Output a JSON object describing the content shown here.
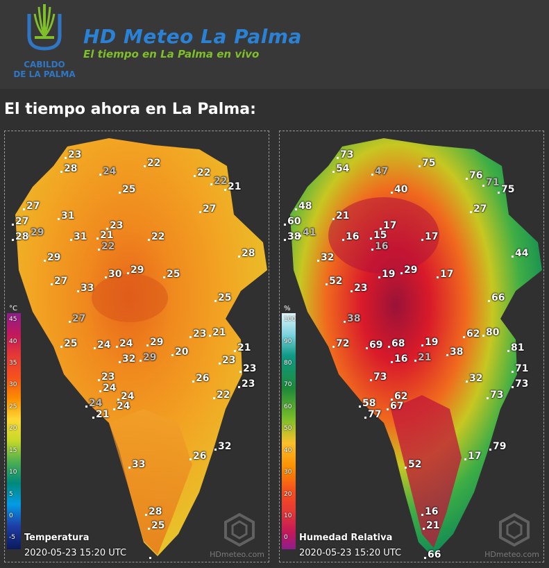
{
  "header": {
    "logo_text_line1": "CABILDO",
    "logo_text_line2": "DE LA PALMA",
    "title": "HD Meteo La Palma",
    "subtitle": "El tiempo en La Palma en vivo",
    "colors": {
      "brand_blue": "#2a82d6",
      "brand_green": "#7fbf2a"
    }
  },
  "page_title": "El tiempo ahora en La Palma:",
  "temperature_map": {
    "caption": "Temperatura",
    "timestamp": "2020-05-23 15:20 UTC",
    "watermark": "HDmeteo.com",
    "unit": "°C",
    "legend_ticks": [
      "45",
      "40",
      "35",
      "30",
      "25",
      "20",
      "15",
      "10",
      "5",
      "0",
      "-5"
    ],
    "readings": [
      "23",
      "28",
      "24",
      "22",
      "22",
      "22",
      "21",
      "25",
      "27",
      "27",
      "31",
      "27",
      "29",
      "28",
      "31",
      "23",
      "21",
      "22",
      "22",
      "28",
      "29",
      "30",
      "29",
      "25",
      "27",
      "33",
      "25",
      "27",
      "25",
      "24",
      "24",
      "29",
      "23",
      "21",
      "21",
      "32",
      "29",
      "20",
      "23",
      "23",
      "23",
      "26",
      "23",
      "24",
      "24",
      "22",
      "24",
      "24",
      "21",
      "32",
      "26",
      "33",
      "28",
      "25"
    ]
  },
  "humidity_map": {
    "caption": "Humedad Relativa",
    "timestamp": "2020-05-23 15:20 UTC",
    "watermark": "HDmeteo.com",
    "unit": "%",
    "legend_ticks": [
      "100",
      "90",
      "80",
      "70",
      "60",
      "50",
      "40",
      "30",
      "20",
      "10",
      "0"
    ],
    "readings": [
      "73",
      "54",
      "47",
      "75",
      "76",
      "71",
      "75",
      "40",
      "48",
      "60",
      "21",
      "27",
      "38",
      "41",
      "17",
      "15",
      "17",
      "16",
      "16",
      "44",
      "32",
      "19",
      "29",
      "17",
      "52",
      "23",
      "66",
      "38",
      "72",
      "69",
      "68",
      "19",
      "62",
      "80",
      "16",
      "21",
      "38",
      "81",
      "71",
      "73",
      "32",
      "73",
      "62",
      "73",
      "58",
      "67",
      "77",
      "79",
      "17",
      "52",
      "16",
      "21",
      "66"
    ]
  }
}
